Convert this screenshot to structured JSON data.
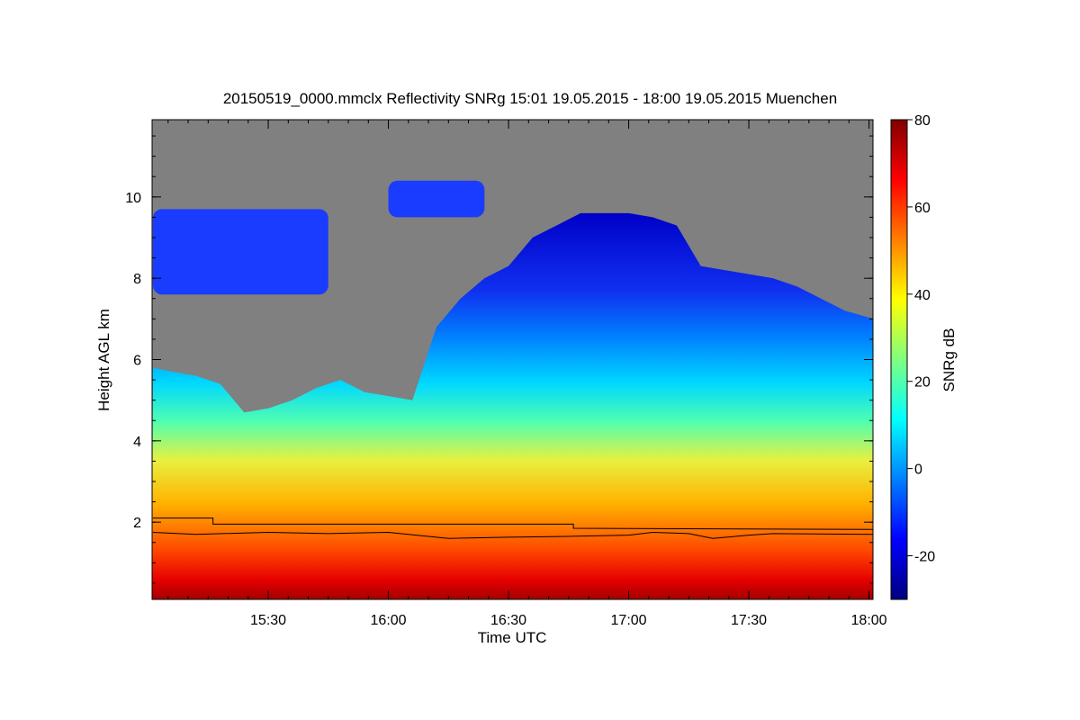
{
  "chart_data": {
    "type": "heatmap",
    "title": "20150519_0000.mmclx Reflectivity SNRg   15:01 19.05.2015 - 18:00 19.05.2015 Muenchen",
    "xlabel": "Time UTC",
    "ylabel": "Height AGL km",
    "colorbar_label": "SNRg dB",
    "x_range_hours": [
      15.0167,
      18.0167
    ],
    "y_range_km": [
      0.1,
      11.9
    ],
    "x_ticks": [
      {
        "value": 15.5,
        "label": "15:30"
      },
      {
        "value": 16.0,
        "label": "16:00"
      },
      {
        "value": 16.5,
        "label": "16:30"
      },
      {
        "value": 17.0,
        "label": "17:00"
      },
      {
        "value": 17.5,
        "label": "17:30"
      },
      {
        "value": 18.0,
        "label": "18:00"
      }
    ],
    "y_ticks": [
      {
        "value": 2,
        "label": "2"
      },
      {
        "value": 4,
        "label": "4"
      },
      {
        "value": 6,
        "label": "6"
      },
      {
        "value": 8,
        "label": "8"
      },
      {
        "value": 10,
        "label": "10"
      }
    ],
    "color_range": [
      -30,
      80
    ],
    "colorbar_ticks": [
      {
        "value": -20,
        "label": "-20"
      },
      {
        "value": 0,
        "label": "0"
      },
      {
        "value": 20,
        "label": "20"
      },
      {
        "value": 40,
        "label": "40"
      },
      {
        "value": 60,
        "label": "60"
      },
      {
        "value": 80,
        "label": "80"
      }
    ],
    "colormap": [
      "#00007f",
      "#0000ff",
      "#007fff",
      "#00ffff",
      "#7fff7f",
      "#ffff00",
      "#ff7f00",
      "#ff0000",
      "#7f0000"
    ],
    "no_data_color": "#808080",
    "cloud_top_km": [
      [
        15.02,
        5.8
      ],
      [
        15.1,
        5.7
      ],
      [
        15.2,
        5.6
      ],
      [
        15.3,
        5.4
      ],
      [
        15.4,
        4.7
      ],
      [
        15.5,
        4.8
      ],
      [
        15.6,
        5.0
      ],
      [
        15.7,
        5.3
      ],
      [
        15.8,
        5.5
      ],
      [
        15.9,
        5.2
      ],
      [
        16.0,
        5.1
      ],
      [
        16.1,
        5.0
      ],
      [
        16.2,
        6.8
      ],
      [
        16.3,
        7.5
      ],
      [
        16.4,
        8.0
      ],
      [
        16.5,
        8.3
      ],
      [
        16.6,
        9.0
      ],
      [
        16.7,
        9.3
      ],
      [
        16.8,
        9.6
      ],
      [
        16.9,
        9.6
      ],
      [
        17.0,
        9.6
      ],
      [
        17.1,
        9.5
      ],
      [
        17.2,
        9.3
      ],
      [
        17.3,
        8.3
      ],
      [
        17.4,
        8.2
      ],
      [
        17.5,
        8.1
      ],
      [
        17.6,
        8.0
      ],
      [
        17.7,
        7.8
      ],
      [
        17.8,
        7.5
      ],
      [
        17.9,
        7.2
      ],
      [
        18.02,
        7.0
      ]
    ],
    "upper_cloud_patches": [
      {
        "x": [
          15.02,
          15.75
        ],
        "base_km": 7.6,
        "top_km": 9.7
      },
      {
        "x": [
          16.0,
          16.4
        ],
        "base_km": 9.5,
        "top_km": 10.4
      }
    ],
    "series": [
      {
        "values": [
          [
            15.02,
            2.1
          ],
          [
            15.27,
            2.1
          ],
          [
            15.27,
            1.95
          ],
          [
            16.77,
            1.95
          ],
          [
            16.77,
            1.85
          ],
          [
            18.02,
            1.82
          ]
        ]
      },
      {
        "values": [
          [
            15.02,
            1.75
          ],
          [
            15.2,
            1.7
          ],
          [
            15.5,
            1.75
          ],
          [
            15.75,
            1.72
          ],
          [
            16.0,
            1.75
          ],
          [
            16.25,
            1.6
          ],
          [
            16.5,
            1.63
          ],
          [
            16.75,
            1.65
          ],
          [
            17.0,
            1.68
          ],
          [
            17.1,
            1.75
          ],
          [
            17.25,
            1.72
          ],
          [
            17.35,
            1.6
          ],
          [
            17.5,
            1.68
          ],
          [
            17.6,
            1.72
          ],
          [
            18.02,
            1.7
          ]
        ]
      }
    ]
  }
}
